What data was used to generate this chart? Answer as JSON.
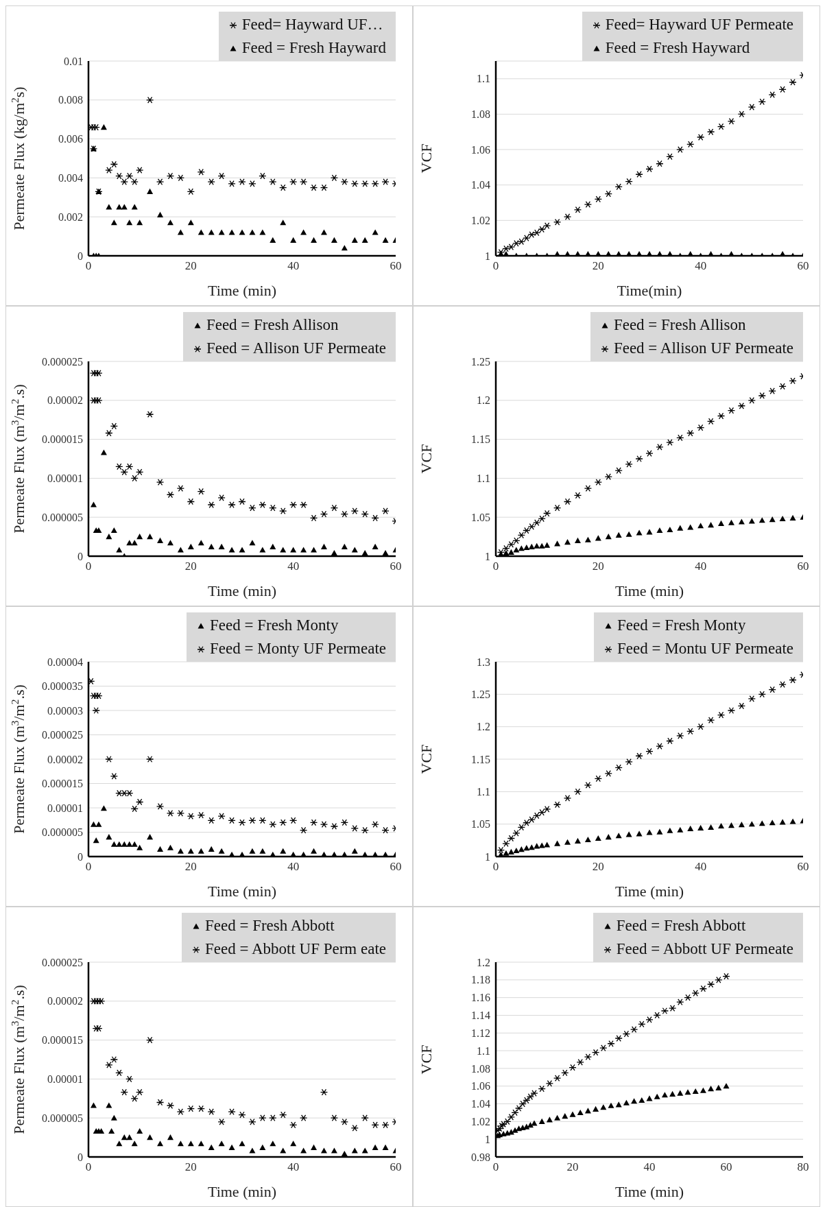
{
  "chart_data": [
    {
      "type": "scatter",
      "xlabel": "Time  (min)",
      "ylabel": "Permeate  Flux  (kg/m$^{2}$s)",
      "xlim": [
        0,
        60
      ],
      "xticks": [
        0,
        20,
        40,
        60
      ],
      "ylim": [
        0,
        0.01
      ],
      "yticks": [
        0,
        0.002,
        0.004,
        0.006,
        0.008,
        0.01
      ],
      "grid": "y",
      "legend": "top right",
      "series": [
        {
          "name": "Feed= Hayward UF…",
          "color": "#000000",
          "marker": "cross",
          "x": [
            0.5,
            1,
            1.5,
            1,
            2,
            4,
            5,
            6,
            7,
            8,
            9,
            10,
            12,
            14,
            16,
            18,
            20,
            22,
            24,
            26,
            28,
            30,
            32,
            34,
            36,
            38,
            40,
            42,
            44,
            46,
            48,
            50,
            52,
            54,
            56,
            58,
            60
          ],
          "values": [
            0.0066,
            0.0066,
            0.0066,
            0.0055,
            0.0033,
            0.0044,
            0.0047,
            0.0041,
            0.0038,
            0.0041,
            0.0038,
            0.0044,
            0.008,
            0.0038,
            0.0041,
            0.004,
            0.0033,
            0.0043,
            0.0038,
            0.0041,
            0.0037,
            0.0038,
            0.0037,
            0.0041,
            0.0038,
            0.0035,
            0.0038,
            0.0038,
            0.0035,
            0.0035,
            0.004,
            0.0038,
            0.0037,
            0.0037,
            0.0037,
            0.0038,
            0.0037
          ]
        },
        {
          "name": "Feed = Fresh Hayward",
          "color": "#000000",
          "marker": "triangle",
          "x": [
            1,
            1.5,
            2,
            1,
            2,
            3,
            4,
            5,
            6,
            7,
            8,
            9,
            10,
            12,
            14,
            16,
            18,
            20,
            22,
            24,
            26,
            28,
            30,
            32,
            34,
            36,
            38,
            40,
            42,
            44,
            46,
            48,
            50,
            52,
            54,
            56,
            58,
            60
          ],
          "values": [
            0,
            0,
            0,
            0.0055,
            0.0033,
            0.0066,
            0.0025,
            0.0017,
            0.0025,
            0.0025,
            0.0017,
            0.0025,
            0.0017,
            0.0033,
            0.0021,
            0.0017,
            0.0012,
            0.0017,
            0.0012,
            0.0012,
            0.0012,
            0.0012,
            0.0012,
            0.0012,
            0.0012,
            0.0008,
            0.0017,
            0.0008,
            0.0012,
            0.0008,
            0.0012,
            0.0008,
            0.0004,
            0.0008,
            0.0008,
            0.0012,
            0.0008,
            0.0008
          ]
        }
      ]
    },
    {
      "type": "scatter",
      "xlabel": "Time(min)",
      "ylabel": "VCF",
      "xlim": [
        0,
        60
      ],
      "xticks": [
        0,
        20,
        40,
        60
      ],
      "ylim": [
        1,
        1.11
      ],
      "yticks": [
        1,
        1.02,
        1.04,
        1.06,
        1.08,
        1.1
      ],
      "grid": "y",
      "legend": "top right",
      "series": [
        {
          "name": "Feed= Hayward UF Permeate",
          "color": "#000000",
          "marker": "cross",
          "x": [
            1,
            2,
            3,
            4,
            5,
            6,
            7,
            8,
            9,
            10,
            12,
            14,
            16,
            18,
            20,
            22,
            24,
            26,
            28,
            30,
            32,
            34,
            36,
            38,
            40,
            42,
            44,
            46,
            48,
            50,
            52,
            54,
            56,
            58,
            60
          ],
          "values": [
            1.002,
            1.004,
            1.005,
            1.007,
            1.008,
            1.01,
            1.012,
            1.013,
            1.015,
            1.017,
            1.019,
            1.022,
            1.026,
            1.029,
            1.032,
            1.035,
            1.039,
            1.042,
            1.046,
            1.049,
            1.052,
            1.056,
            1.06,
            1.063,
            1.067,
            1.07,
            1.073,
            1.076,
            1.08,
            1.084,
            1.087,
            1.091,
            1.094,
            1.098,
            1.102
          ]
        },
        {
          "name": "Feed = Fresh Hayward",
          "color": "#000000",
          "marker": "triangle",
          "x": [
            1,
            2,
            4,
            6,
            8,
            10,
            12,
            14,
            16,
            18,
            20,
            22,
            24,
            26,
            28,
            30,
            32,
            34,
            36,
            38,
            40,
            42,
            44,
            46,
            48,
            50,
            52,
            54,
            56,
            58,
            60
          ],
          "values": [
            1.001,
            1.001,
            1,
            1,
            1,
            1,
            1.001,
            1.001,
            1.001,
            1.001,
            1.001,
            1.001,
            1.001,
            1.001,
            1.001,
            1.001,
            1.001,
            1.001,
            1,
            1.001,
            1,
            1.001,
            1,
            1.001,
            1,
            1,
            1,
            1,
            1.001,
            1,
            1
          ]
        }
      ]
    },
    {
      "type": "scatter",
      "xlabel": "Time  (min)",
      "ylabel": "Permeate  Flux  (m$^{3}$/m$^{2}$.s)",
      "xlim": [
        0,
        60
      ],
      "xticks": [
        0,
        20,
        40,
        60
      ],
      "ylim": [
        0,
        2.5e-05
      ],
      "yticks": [
        0,
        {
          "value": 5e-06,
          "label": "0.000005"
        },
        {
          "value": 1e-05,
          "label": "0.00001"
        },
        {
          "value": 1.5e-05,
          "label": "0.000015"
        },
        {
          "value": 2e-05,
          "label": "0.00002"
        },
        {
          "value": 2.5e-05,
          "label": "0.000025"
        }
      ],
      "grid": "y",
      "legend": "top right",
      "series": [
        {
          "name": "Feed = Fresh Allison",
          "color": "#000000",
          "marker": "triangle",
          "x": [
            1,
            1.5,
            2,
            3,
            4,
            5,
            6,
            7,
            8,
            9,
            10,
            12,
            14,
            16,
            18,
            20,
            22,
            24,
            26,
            28,
            30,
            32,
            34,
            36,
            38,
            40,
            42,
            44,
            46,
            48,
            50,
            52,
            54,
            56,
            58,
            60
          ],
          "values": [
            6.6e-06,
            3.3e-06,
            3.3e-06,
            1.33e-05,
            2.5e-06,
            3.3e-06,
            8e-07,
            0,
            1.7e-06,
            1.7e-06,
            2.5e-06,
            2.5e-06,
            2e-06,
            1.7e-06,
            8e-07,
            1.2e-06,
            1.7e-06,
            1.2e-06,
            1.2e-06,
            8e-07,
            8e-07,
            1.7e-06,
            8e-07,
            1.2e-06,
            8e-07,
            8e-07,
            8e-07,
            8e-07,
            1.2e-06,
            4e-07,
            1.2e-06,
            8e-07,
            4e-07,
            1.2e-06,
            4e-07,
            8e-07
          ]
        },
        {
          "name": "Feed = Allison UF Permeate",
          "color": "#000000",
          "marker": "cross",
          "x": [
            1,
            1.5,
            2,
            1,
            1.5,
            2,
            4,
            5,
            6,
            7,
            8,
            9,
            10,
            12,
            14,
            16,
            18,
            20,
            22,
            24,
            26,
            28,
            30,
            32,
            34,
            36,
            38,
            40,
            42,
            44,
            46,
            48,
            50,
            52,
            54,
            56,
            58,
            60
          ],
          "values": [
            2.35e-05,
            2.35e-05,
            2.35e-05,
            2e-05,
            2e-05,
            2e-05,
            1.58e-05,
            1.67e-05,
            1.15e-05,
            1.08e-05,
            1.15e-05,
            1e-05,
            1.08e-05,
            1.82e-05,
            9.5e-06,
            7.9e-06,
            8.7e-06,
            7e-06,
            8.3e-06,
            6.6e-06,
            7.5e-06,
            6.6e-06,
            7e-06,
            6.2e-06,
            6.6e-06,
            6.2e-06,
            5.8e-06,
            6.6e-06,
            6.6e-06,
            4.9e-06,
            5.4e-06,
            6.2e-06,
            5.4e-06,
            5.8e-06,
            5.4e-06,
            4.9e-06,
            5.8e-06,
            4.5e-06
          ]
        }
      ]
    },
    {
      "type": "scatter",
      "xlabel": "Time  (min)",
      "ylabel": "VCF",
      "xlim": [
        0,
        60
      ],
      "xticks": [
        0,
        20,
        40,
        60
      ],
      "ylim": [
        1,
        1.25
      ],
      "yticks": [
        1,
        1.05,
        1.1,
        1.15,
        1.2,
        1.25
      ],
      "grid": "y",
      "legend": "top right",
      "series": [
        {
          "name": "Feed = Fresh Allison",
          "color": "#000000",
          "marker": "triangle",
          "x": [
            1,
            2,
            3,
            4,
            5,
            6,
            7,
            8,
            9,
            10,
            12,
            14,
            16,
            18,
            20,
            22,
            24,
            26,
            28,
            30,
            32,
            34,
            36,
            38,
            40,
            42,
            44,
            46,
            48,
            50,
            52,
            54,
            56,
            58,
            60
          ],
          "values": [
            1.002,
            1.004,
            1.005,
            1.008,
            1.01,
            1.011,
            1.012,
            1.013,
            1.013,
            1.014,
            1.016,
            1.018,
            1.02,
            1.021,
            1.023,
            1.025,
            1.027,
            1.028,
            1.03,
            1.031,
            1.033,
            1.034,
            1.036,
            1.037,
            1.039,
            1.04,
            1.042,
            1.043,
            1.044,
            1.045,
            1.046,
            1.047,
            1.048,
            1.049,
            1.05
          ]
        },
        {
          "name": "Feed = Allison UF Permeate",
          "color": "#000000",
          "marker": "cross",
          "x": [
            1,
            2,
            3,
            4,
            5,
            6,
            7,
            8,
            9,
            10,
            12,
            14,
            16,
            18,
            20,
            22,
            24,
            26,
            28,
            30,
            32,
            34,
            36,
            38,
            40,
            42,
            44,
            46,
            48,
            50,
            52,
            54,
            56,
            58,
            60
          ],
          "values": [
            1.005,
            1.01,
            1.015,
            1.02,
            1.027,
            1.033,
            1.038,
            1.043,
            1.048,
            1.055,
            1.062,
            1.07,
            1.078,
            1.087,
            1.095,
            1.102,
            1.11,
            1.118,
            1.125,
            1.132,
            1.14,
            1.146,
            1.152,
            1.158,
            1.165,
            1.173,
            1.18,
            1.187,
            1.193,
            1.2,
            1.206,
            1.212,
            1.218,
            1.225,
            1.231
          ]
        }
      ]
    },
    {
      "type": "scatter",
      "xlabel": "Time  (min)",
      "ylabel": "Permeate  Flux  (m$^{3}$/m$^{2}$.s)",
      "xlim": [
        0,
        60
      ],
      "xticks": [
        0,
        20,
        40,
        60
      ],
      "ylim": [
        0,
        4e-05
      ],
      "yticks": [
        0,
        {
          "value": 5e-06,
          "label": "0.000005"
        },
        {
          "value": 1e-05,
          "label": "0.00001"
        },
        {
          "value": 1.5e-05,
          "label": "0.000015"
        },
        {
          "value": 2e-05,
          "label": "0.00002"
        },
        {
          "value": 2.5e-05,
          "label": "0.000025"
        },
        {
          "value": 3e-05,
          "label": "0.00003"
        },
        {
          "value": 3.5e-05,
          "label": "0.000035"
        },
        {
          "value": 4e-05,
          "label": "0.00004"
        }
      ],
      "grid": "y",
      "legend": "top right",
      "series": [
        {
          "name": "Feed = Fresh Monty",
          "color": "#000000",
          "marker": "triangle",
          "x": [
            1,
            1.5,
            2,
            3,
            4,
            5,
            6,
            7,
            8,
            9,
            10,
            12,
            14,
            16,
            18,
            20,
            22,
            24,
            26,
            28,
            30,
            32,
            34,
            36,
            38,
            40,
            42,
            44,
            46,
            48,
            50,
            52,
            54,
            56,
            58,
            60
          ],
          "values": [
            6.6e-06,
            3.3e-06,
            6.6e-06,
            9.9e-06,
            4e-06,
            2.5e-06,
            2.5e-06,
            2.5e-06,
            2.5e-06,
            2.5e-06,
            1.8e-06,
            4e-06,
            1.5e-06,
            1.8e-06,
            1.1e-06,
            1.1e-06,
            1.1e-06,
            1.5e-06,
            1.1e-06,
            4e-07,
            4e-07,
            1.1e-06,
            1.1e-06,
            4e-07,
            1.1e-06,
            4e-07,
            4e-07,
            1.1e-06,
            4e-07,
            4e-07,
            4e-07,
            1.1e-06,
            4e-07,
            4e-07,
            4e-07,
            4e-07
          ]
        },
        {
          "name": "Feed = Monty UF Permeate",
          "color": "#000000",
          "marker": "cross",
          "x": [
            0.5,
            1,
            1.5,
            2,
            1.5,
            4,
            5,
            6,
            7,
            8,
            9,
            10,
            12,
            14,
            16,
            18,
            20,
            22,
            24,
            26,
            28,
            30,
            32,
            34,
            36,
            38,
            40,
            42,
            44,
            46,
            48,
            50,
            52,
            54,
            56,
            58,
            60
          ],
          "values": [
            3.6e-05,
            3.3e-05,
            3.3e-05,
            3.3e-05,
            3e-05,
            2e-05,
            1.65e-05,
            1.3e-05,
            1.3e-05,
            1.3e-05,
            9.8e-06,
            1.12e-05,
            2e-05,
            1.03e-05,
            8.9e-06,
            8.9e-06,
            8.3e-06,
            8.5e-06,
            7.4e-06,
            8.3e-06,
            7.4e-06,
            7e-06,
            7.4e-06,
            7.4e-06,
            6.6e-06,
            7e-06,
            7.4e-06,
            5.4e-06,
            7e-06,
            6.6e-06,
            6.2e-06,
            7e-06,
            5.8e-06,
            5.4e-06,
            6.6e-06,
            5.4e-06,
            5.8e-06
          ]
        }
      ]
    },
    {
      "type": "scatter",
      "xlabel": "Time  (min)",
      "ylabel": "VCF",
      "xlim": [
        0,
        60
      ],
      "xticks": [
        0,
        20,
        40,
        60
      ],
      "ylim": [
        1,
        1.3
      ],
      "yticks": [
        1,
        1.05,
        1.1,
        1.15,
        1.2,
        1.25,
        1.3
      ],
      "grid": "y",
      "legend": "top right",
      "series": [
        {
          "name": "Feed = Fresh Monty",
          "color": "#000000",
          "marker": "triangle",
          "x": [
            1,
            2,
            3,
            4,
            5,
            6,
            7,
            8,
            9,
            10,
            12,
            14,
            16,
            18,
            20,
            22,
            24,
            26,
            28,
            30,
            32,
            34,
            36,
            38,
            40,
            42,
            44,
            46,
            48,
            50,
            52,
            54,
            56,
            58,
            60
          ],
          "values": [
            1.003,
            1.005,
            1.007,
            1.009,
            1.011,
            1.013,
            1.014,
            1.016,
            1.017,
            1.018,
            1.02,
            1.022,
            1.024,
            1.026,
            1.028,
            1.03,
            1.032,
            1.034,
            1.035,
            1.037,
            1.038,
            1.04,
            1.041,
            1.043,
            1.044,
            1.045,
            1.047,
            1.048,
            1.049,
            1.05,
            1.051,
            1.052,
            1.053,
            1.054,
            1.055
          ]
        },
        {
          "name": "Feed = Montu UF Permeate",
          "color": "#000000",
          "marker": "cross",
          "x": [
            1,
            2,
            3,
            4,
            5,
            6,
            7,
            8,
            9,
            10,
            12,
            14,
            16,
            18,
            20,
            22,
            24,
            26,
            28,
            30,
            32,
            34,
            36,
            38,
            40,
            42,
            44,
            46,
            48,
            50,
            52,
            54,
            56,
            58,
            60
          ],
          "values": [
            1.01,
            1.02,
            1.028,
            1.036,
            1.045,
            1.052,
            1.057,
            1.063,
            1.068,
            1.073,
            1.08,
            1.09,
            1.1,
            1.11,
            1.12,
            1.128,
            1.137,
            1.146,
            1.155,
            1.162,
            1.17,
            1.178,
            1.186,
            1.193,
            1.2,
            1.21,
            1.218,
            1.225,
            1.232,
            1.243,
            1.25,
            1.257,
            1.265,
            1.272,
            1.28
          ]
        }
      ]
    },
    {
      "type": "scatter",
      "xlabel": "Time  (min)",
      "ylabel": "Permeate  Flux  (m$^{3}$/m$^{2}$.s)",
      "xlim": [
        0,
        60
      ],
      "xticks": [
        0,
        20,
        40,
        60
      ],
      "ylim": [
        0,
        2.5e-05
      ],
      "yticks": [
        0,
        {
          "value": 5e-06,
          "label": "0.000005"
        },
        {
          "value": 1e-05,
          "label": "0.00001"
        },
        {
          "value": 1.5e-05,
          "label": "0.000015"
        },
        {
          "value": 2e-05,
          "label": "0.00002"
        },
        {
          "value": 2.5e-05,
          "label": "0.000025"
        }
      ],
      "grid": "y",
      "legend": "top right",
      "series": [
        {
          "name": "Feed = Fresh Abbott",
          "color": "#000000",
          "marker": "triangle",
          "x": [
            1,
            1.5,
            2,
            2.5,
            4,
            4.5,
            5,
            6,
            7,
            8,
            9,
            10,
            12,
            14,
            16,
            18,
            20,
            22,
            24,
            26,
            28,
            30,
            32,
            34,
            36,
            38,
            40,
            42,
            44,
            46,
            48,
            50,
            52,
            54,
            56,
            58,
            60
          ],
          "values": [
            6.6e-06,
            3.3e-06,
            3.3e-06,
            3.3e-06,
            6.6e-06,
            3.3e-06,
            5e-06,
            1.7e-06,
            2.5e-06,
            2.5e-06,
            1.7e-06,
            3.3e-06,
            2.5e-06,
            1.7e-06,
            2.5e-06,
            1.7e-06,
            1.7e-06,
            1.7e-06,
            1.2e-06,
            1.7e-06,
            1.2e-06,
            1.7e-06,
            8e-07,
            1.2e-06,
            1.7e-06,
            8e-07,
            1.7e-06,
            8e-07,
            1.2e-06,
            8e-07,
            8e-07,
            4e-07,
            8e-07,
            8e-07,
            1.2e-06,
            1.2e-06,
            8e-07
          ]
        },
        {
          "name": "Feed = Abbott UF Perm eate",
          "color": "#000000",
          "marker": "cross",
          "x": [
            1,
            1.5,
            2,
            2.5,
            1.5,
            2,
            4,
            5,
            6,
            7,
            8,
            9,
            10,
            12,
            14,
            16,
            18,
            20,
            22,
            24,
            26,
            28,
            30,
            32,
            34,
            36,
            38,
            40,
            42,
            46,
            48,
            50,
            52,
            54,
            56,
            58,
            60
          ],
          "values": [
            2e-05,
            2e-05,
            2e-05,
            2e-05,
            1.65e-05,
            1.65e-05,
            1.18e-05,
            1.25e-05,
            1.08e-05,
            8.3e-06,
            1e-05,
            7.5e-06,
            8.3e-06,
            1.5e-05,
            7e-06,
            6.6e-06,
            5.8e-06,
            6.2e-06,
            6.2e-06,
            5.8e-06,
            4.5e-06,
            5.8e-06,
            5.4e-06,
            4.5e-06,
            5e-06,
            5e-06,
            5.4e-06,
            4.1e-06,
            5e-06,
            8.3e-06,
            5e-06,
            4.5e-06,
            3.7e-06,
            5e-06,
            4.1e-06,
            4.1e-06,
            4.5e-06
          ]
        }
      ]
    },
    {
      "type": "scatter",
      "xlabel": "Time  (min)",
      "ylabel": "VCF",
      "xlim": [
        0,
        80
      ],
      "xticks": [
        0,
        20,
        40,
        60,
        80
      ],
      "ylim": [
        0.98,
        1.2
      ],
      "yticks": [
        0.98,
        1,
        1.02,
        1.04,
        1.06,
        1.08,
        1.1,
        1.12,
        1.14,
        1.16,
        1.18,
        1.2
      ],
      "grid": "y",
      "legend": "top right",
      "series": [
        {
          "name": "Feed = Fresh Abbott",
          "color": "#000000",
          "marker": "triangle",
          "x": [
            0.5,
            1,
            2,
            3,
            4,
            5,
            6,
            7,
            8,
            9,
            10,
            12,
            14,
            16,
            18,
            20,
            22,
            24,
            26,
            28,
            30,
            32,
            34,
            36,
            38,
            40,
            42,
            44,
            46,
            48,
            50,
            52,
            54,
            56,
            58,
            60
          ],
          "values": [
            1.004,
            1.005,
            1.006,
            1.007,
            1.008,
            1.01,
            1.012,
            1.013,
            1.014,
            1.016,
            1.018,
            1.02,
            1.022,
            1.024,
            1.026,
            1.028,
            1.03,
            1.032,
            1.034,
            1.036,
            1.038,
            1.039,
            1.041,
            1.043,
            1.044,
            1.046,
            1.048,
            1.05,
            1.051,
            1.052,
            1.053,
            1.054,
            1.055,
            1.057,
            1.058,
            1.06
          ]
        },
        {
          "name": "Feed = Abbott UF Permeate",
          "color": "#000000",
          "marker": "cross",
          "x": [
            0.5,
            1,
            1.5,
            2,
            3,
            4,
            5,
            6,
            7,
            8,
            9,
            10,
            12,
            14,
            16,
            18,
            20,
            22,
            24,
            26,
            28,
            30,
            32,
            34,
            36,
            38,
            40,
            42,
            44,
            46,
            48,
            50,
            52,
            54,
            56,
            58,
            60
          ],
          "values": [
            1.01,
            1.012,
            1.015,
            1.017,
            1.02,
            1.025,
            1.03,
            1.035,
            1.04,
            1.044,
            1.048,
            1.052,
            1.057,
            1.063,
            1.069,
            1.075,
            1.081,
            1.087,
            1.093,
            1.098,
            1.103,
            1.108,
            1.114,
            1.119,
            1.124,
            1.13,
            1.135,
            1.14,
            1.145,
            1.148,
            1.155,
            1.16,
            1.165,
            1.17,
            1.175,
            1.18,
            1.184
          ]
        }
      ]
    }
  ]
}
